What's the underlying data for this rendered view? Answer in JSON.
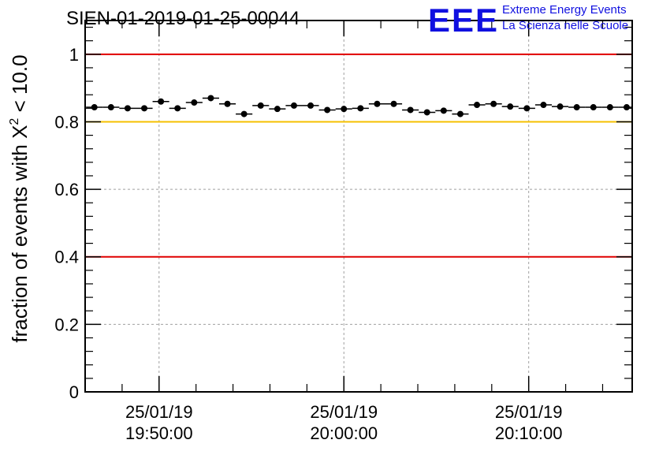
{
  "header": {
    "run_title": "SIEN-01-2019-01-25-00044",
    "logo_text": "EEE",
    "logo_line1": "Extreme Energy Events",
    "logo_line2": "La Scienza nelle Scuole"
  },
  "colors": {
    "frame": "#000000",
    "grid": "#a0a0a0",
    "red_line": "#e00000",
    "yellow_line": "#f5c000",
    "marker": "#000000",
    "logo": "#1010e0"
  },
  "chart_data": {
    "type": "scatter",
    "title": "SIEN-01-2019-01-25-00044",
    "xlabel": "",
    "ylabel_prefix": "fraction of events with ",
    "ylabel_symbol": "X",
    "ylabel_superscript": "2",
    "ylabel_suffix": " < 10.0",
    "ylim": [
      0,
      1.1
    ],
    "xlim": [
      -4.0,
      25.6
    ],
    "x_unit": "minutes after 19:50:00",
    "y_ticks": [
      {
        "value": 0,
        "label": "0"
      },
      {
        "value": 0.2,
        "label": "0.2"
      },
      {
        "value": 0.4,
        "label": "0.4"
      },
      {
        "value": 0.6,
        "label": "0.6"
      },
      {
        "value": 0.8,
        "label": "0.8"
      },
      {
        "value": 1,
        "label": "1"
      }
    ],
    "x_ticks": [
      {
        "value": 0,
        "date": "25/01/19",
        "time": "19:50:00"
      },
      {
        "value": 10,
        "date": "25/01/19",
        "time": "20:00:00"
      },
      {
        "value": 20,
        "date": "25/01/19",
        "time": "20:10:00"
      }
    ],
    "reference_lines": [
      {
        "y": 1.0,
        "color": "red"
      },
      {
        "y": 0.8,
        "color": "yellow"
      },
      {
        "y": 0.4,
        "color": "red"
      }
    ],
    "bin_width": 0.9,
    "x": [
      -3.5,
      -2.6,
      -1.7,
      -0.8,
      0.1,
      1.0,
      1.9,
      2.8,
      3.7,
      4.6,
      5.5,
      6.4,
      7.3,
      8.2,
      9.1,
      10.0,
      10.9,
      11.8,
      12.7,
      13.6,
      14.5,
      15.4,
      16.3,
      17.2,
      18.1,
      19.0,
      19.9,
      20.8,
      21.7,
      22.6,
      23.5,
      24.4,
      25.3
    ],
    "y": [
      0.843,
      0.843,
      0.84,
      0.84,
      0.86,
      0.84,
      0.857,
      0.87,
      0.853,
      0.823,
      0.848,
      0.838,
      0.848,
      0.848,
      0.835,
      0.838,
      0.84,
      0.853,
      0.853,
      0.835,
      0.828,
      0.833,
      0.823,
      0.85,
      0.853,
      0.845,
      0.84,
      0.85,
      0.845,
      0.843,
      0.843,
      0.843,
      0.843
    ]
  }
}
